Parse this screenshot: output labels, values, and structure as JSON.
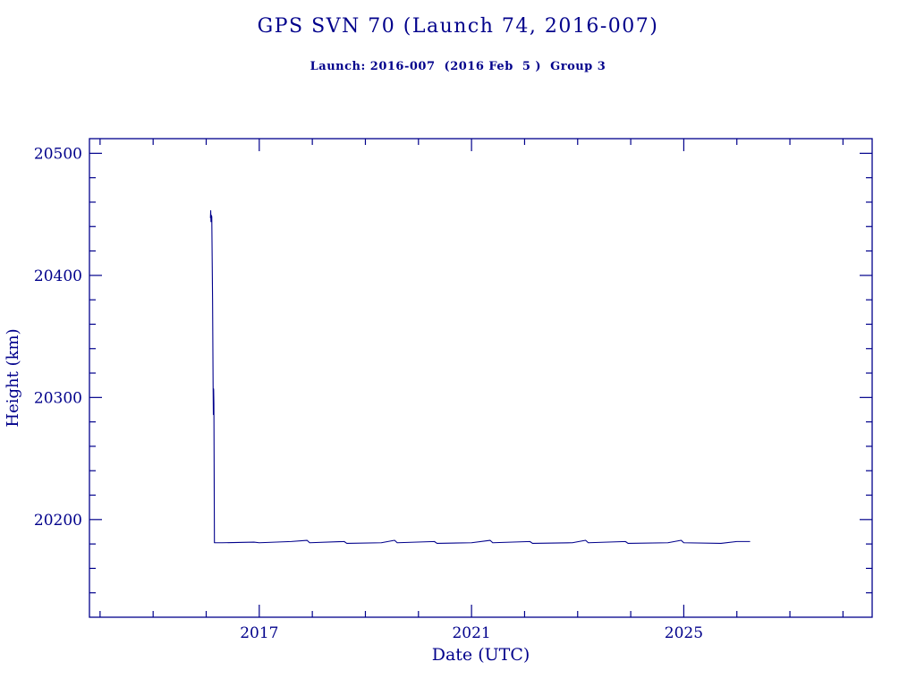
{
  "page": {
    "background": "#ffffff",
    "accent": "#00008b"
  },
  "chart_data": {
    "type": "line",
    "title": "GPS SVN 70 (Launch 74, 2016-007)",
    "subtitle": "Launch: 2016-007  (2016 Feb  5 )  Group 3",
    "xlabel": "Date (UTC)",
    "ylabel": "Height (km)",
    "xlim": [
      2013.8,
      2028.55
    ],
    "ylim": [
      20120,
      20512
    ],
    "xticks_major": [
      2017,
      2021,
      2025
    ],
    "xtick_minor_step": 1,
    "yticks_major": [
      20200,
      20300,
      20400,
      20500
    ],
    "ytick_minor_step": 20,
    "grid": false,
    "legend": "none",
    "line_color": "#00008b",
    "series": [
      {
        "name": "Height (km)",
        "points": [
          [
            2016.08,
            20447
          ],
          [
            2016.085,
            20453
          ],
          [
            2016.09,
            20444
          ],
          [
            2016.1,
            20449
          ],
          [
            2016.105,
            20448
          ],
          [
            2016.12,
            20380
          ],
          [
            2016.13,
            20310
          ],
          [
            2016.135,
            20286
          ],
          [
            2016.14,
            20307
          ],
          [
            2016.145,
            20295
          ],
          [
            2016.155,
            20181
          ],
          [
            2016.3,
            20181
          ],
          [
            2016.9,
            20181.5
          ],
          [
            2017.0,
            20181
          ],
          [
            2017.6,
            20182
          ],
          [
            2017.9,
            20183
          ],
          [
            2017.95,
            20181
          ],
          [
            2018.6,
            20182
          ],
          [
            2018.65,
            20180.5
          ],
          [
            2019.3,
            20181
          ],
          [
            2019.55,
            20183
          ],
          [
            2019.6,
            20181
          ],
          [
            2020.3,
            20182
          ],
          [
            2020.35,
            20180.5
          ],
          [
            2021.0,
            20181
          ],
          [
            2021.35,
            20183
          ],
          [
            2021.4,
            20181
          ],
          [
            2022.1,
            20182
          ],
          [
            2022.15,
            20180.5
          ],
          [
            2022.9,
            20181
          ],
          [
            2023.15,
            20183
          ],
          [
            2023.2,
            20181
          ],
          [
            2023.9,
            20182
          ],
          [
            2023.95,
            20180.5
          ],
          [
            2024.7,
            20181
          ],
          [
            2024.95,
            20183
          ],
          [
            2025.0,
            20181
          ],
          [
            2025.7,
            20180.5
          ],
          [
            2026.0,
            20182
          ],
          [
            2026.25,
            20182
          ]
        ]
      }
    ]
  }
}
